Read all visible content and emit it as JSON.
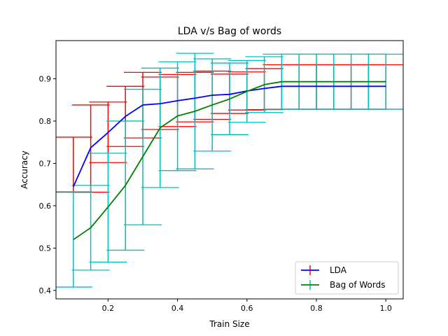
{
  "chart_data": {
    "type": "line",
    "title": "LDA v/s Bag of words",
    "xlabel": "Train Size",
    "ylabel": "Accuracy",
    "xlim": [
      0.05,
      1.05
    ],
    "ylim": [
      0.38,
      0.99
    ],
    "xticks": [
      "0.2",
      "0.4",
      "0.6",
      "0.8",
      "1.0"
    ],
    "xtick_values": [
      0.2,
      0.4,
      0.6,
      0.8,
      1.0
    ],
    "yticks": [
      "0.4",
      "0.5",
      "0.6",
      "0.7",
      "0.8",
      "0.9"
    ],
    "ytick_values": [
      0.4,
      0.5,
      0.6,
      0.7,
      0.8,
      0.9
    ],
    "grid": false,
    "legend_position": "lower-right",
    "x": [
      0.1,
      0.15,
      0.2,
      0.25,
      0.3,
      0.35,
      0.4,
      0.45,
      0.5,
      0.55,
      0.6,
      0.65,
      0.7,
      0.75,
      0.8,
      0.85,
      0.9,
      0.95,
      1.0
    ],
    "series": [
      {
        "name": "LDA",
        "color": "#0000ff",
        "error_color": "#ff0000",
        "values": [
          0.645,
          0.737,
          0.773,
          0.811,
          0.838,
          0.841,
          0.848,
          0.854,
          0.861,
          0.863,
          0.871,
          0.877,
          0.882,
          0.882,
          0.882,
          0.882,
          0.882,
          0.882,
          0.882
        ],
        "lower": [
          0.632,
          0.632,
          0.702,
          0.74,
          0.76,
          0.78,
          0.787,
          0.798,
          0.804,
          0.818,
          0.826,
          0.827,
          0.828,
          0.828,
          0.828,
          0.828,
          0.828,
          0.828,
          0.828
        ],
        "upper": [
          0.762,
          0.838,
          0.845,
          0.882,
          0.915,
          0.904,
          0.91,
          0.915,
          0.918,
          0.911,
          0.916,
          0.924,
          0.933,
          0.933,
          0.933,
          0.933,
          0.933,
          0.933,
          0.933
        ]
      },
      {
        "name": "Bag of Words",
        "color": "#008000",
        "error_color": "#00bfbf",
        "values": [
          0.52,
          0.548,
          0.597,
          0.648,
          0.716,
          0.784,
          0.812,
          0.823,
          0.838,
          0.852,
          0.87,
          0.886,
          0.893,
          0.893,
          0.893,
          0.893,
          0.893,
          0.893,
          0.893
        ],
        "lower": [
          0.408,
          0.448,
          0.467,
          0.495,
          0.555,
          0.643,
          0.683,
          0.687,
          0.729,
          0.768,
          0.797,
          0.82,
          0.828,
          0.828,
          0.828,
          0.828,
          0.828,
          0.828,
          0.828
        ],
        "upper": [
          0.633,
          0.648,
          0.724,
          0.8,
          0.875,
          0.925,
          0.94,
          0.96,
          0.947,
          0.937,
          0.943,
          0.952,
          0.958,
          0.958,
          0.958,
          0.958,
          0.958,
          0.958,
          0.958
        ]
      }
    ]
  }
}
